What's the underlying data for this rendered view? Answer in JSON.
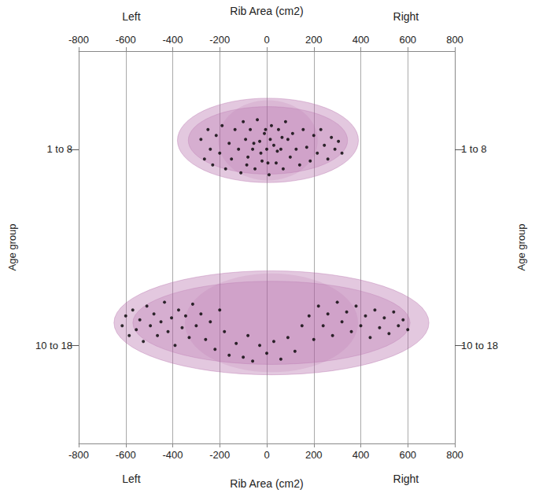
{
  "chart_data": {
    "type": "scatter",
    "xlabel": "Rib Area (cm2)",
    "ylabel": "Age group",
    "annotations": [
      "Left",
      "Right"
    ],
    "xlim": [
      -800,
      800
    ],
    "xticks": [
      -800,
      -600,
      -400,
      -200,
      0,
      200,
      400,
      600,
      800
    ],
    "ylim": [
      0.5,
      2.5
    ],
    "yticks": [
      {
        "value": 1,
        "label": "1 to 8"
      },
      {
        "value": 2,
        "label": "10 to 18"
      }
    ],
    "grid": true,
    "series": [
      {
        "type": "envelope",
        "color": "#b060a4",
        "values": [
          {
            "x": [
              -380,
              390
            ],
            "y": [
              0.74,
              1.17
            ]
          },
          {
            "x": [
              -650,
              690
            ],
            "y": [
              1.62,
              2.15
            ]
          }
        ]
      },
      {
        "type": "scatter",
        "color": "#000000",
        "values": [
          [
            -280,
            0.95
          ],
          [
            -265,
            1.05
          ],
          [
            -250,
            0.9
          ],
          [
            -240,
            1.0
          ],
          [
            -230,
            1.08
          ],
          [
            -215,
            0.93
          ],
          [
            -200,
            1.02
          ],
          [
            -190,
            0.88
          ],
          [
            -175,
            1.1
          ],
          [
            -160,
            0.97
          ],
          [
            -150,
            1.05
          ],
          [
            -135,
            0.9
          ],
          [
            -120,
            1.0
          ],
          [
            -110,
            1.12
          ],
          [
            -100,
            0.86
          ],
          [
            -90,
            0.95
          ],
          [
            -80,
            1.04
          ],
          [
            -70,
            0.9
          ],
          [
            -60,
            1.0
          ],
          [
            -50,
            1.1
          ],
          [
            -40,
            0.85
          ],
          [
            -30,
            0.96
          ],
          [
            -20,
            1.06
          ],
          [
            -10,
            0.92
          ],
          [
            0,
            1.0
          ],
          [
            10,
            1.13
          ],
          [
            20,
            0.88
          ],
          [
            30,
            0.98
          ],
          [
            40,
            1.07
          ],
          [
            50,
            0.9
          ],
          [
            60,
            1.0
          ],
          [
            70,
            1.1
          ],
          [
            80,
            0.86
          ],
          [
            90,
            0.95
          ],
          [
            100,
            1.04
          ],
          [
            110,
            0.92
          ],
          [
            125,
            1.0
          ],
          [
            140,
            1.08
          ],
          [
            155,
            0.9
          ],
          [
            170,
            0.99
          ],
          [
            185,
            1.06
          ],
          [
            200,
            0.93
          ],
          [
            215,
            1.02
          ],
          [
            230,
            0.9
          ],
          [
            245,
            0.98
          ],
          [
            260,
            1.05
          ],
          [
            275,
            0.94
          ],
          [
            290,
            1.0
          ],
          [
            305,
            0.96
          ],
          [
            320,
            1.02
          ],
          [
            -55,
            0.97
          ],
          [
            -25,
            1.02
          ],
          [
            15,
            0.95
          ],
          [
            45,
            1.01
          ],
          [
            -85,
            1.08
          ],
          [
            65,
            0.94
          ],
          [
            5,
            1.07
          ],
          [
            -5,
            0.9
          ]
        ]
      },
      {
        "type": "scatter",
        "color": "#000000",
        "values": [
          [
            -615,
            1.9
          ],
          [
            -600,
            1.85
          ],
          [
            -585,
            1.95
          ],
          [
            -570,
            1.82
          ],
          [
            -555,
            1.92
          ],
          [
            -540,
            1.87
          ],
          [
            -525,
            1.98
          ],
          [
            -510,
            1.8
          ],
          [
            -495,
            1.9
          ],
          [
            -480,
            1.84
          ],
          [
            -465,
            1.95
          ],
          [
            -450,
            1.88
          ],
          [
            -435,
            1.78
          ],
          [
            -420,
            1.93
          ],
          [
            -405,
            1.86
          ],
          [
            -390,
            2.0
          ],
          [
            -375,
            1.82
          ],
          [
            -360,
            1.91
          ],
          [
            -345,
            1.85
          ],
          [
            -330,
            1.96
          ],
          [
            -315,
            1.79
          ],
          [
            -300,
            1.9
          ],
          [
            -280,
            1.84
          ],
          [
            -260,
            1.97
          ],
          [
            -240,
            1.88
          ],
          [
            -220,
            2.02
          ],
          [
            -200,
            1.82
          ],
          [
            -180,
            1.93
          ],
          [
            -160,
            2.05
          ],
          [
            -130,
            1.99
          ],
          [
            -100,
            2.06
          ],
          [
            -80,
            1.95
          ],
          [
            -60,
            2.08
          ],
          [
            -30,
            2.0
          ],
          [
            0,
            2.04
          ],
          [
            30,
            1.98
          ],
          [
            60,
            2.07
          ],
          [
            90,
            1.96
          ],
          [
            120,
            2.03
          ],
          [
            150,
            1.9
          ],
          [
            180,
            1.85
          ],
          [
            200,
            1.97
          ],
          [
            220,
            1.8
          ],
          [
            240,
            1.9
          ],
          [
            260,
            1.84
          ],
          [
            280,
            1.95
          ],
          [
            300,
            1.78
          ],
          [
            320,
            1.88
          ],
          [
            340,
            1.83
          ],
          [
            360,
            1.93
          ],
          [
            380,
            1.8
          ],
          [
            400,
            1.9
          ],
          [
            420,
            1.85
          ],
          [
            440,
            1.96
          ],
          [
            460,
            1.82
          ],
          [
            480,
            1.91
          ],
          [
            500,
            1.86
          ],
          [
            520,
            1.94
          ],
          [
            540,
            1.83
          ],
          [
            560,
            1.9
          ],
          [
            580,
            1.87
          ],
          [
            600,
            1.92
          ]
        ]
      }
    ]
  }
}
